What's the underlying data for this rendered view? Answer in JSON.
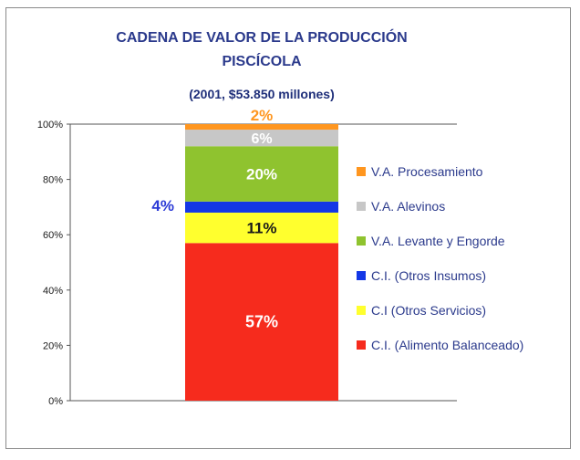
{
  "chart_data": {
    "type": "bar",
    "stacked": true,
    "title": "CADENA DE VALOR DE LA PRODUCCIÓN PISCÍCOLA",
    "title_lines": [
      "CADENA DE VALOR DE LA PRODUCCIÓN",
      "PISCÍCOLA"
    ],
    "subtitle": "(2001, $53.850 millones)",
    "ylim": [
      0,
      100
    ],
    "yticks": [
      "0%",
      "20%",
      "40%",
      "60%",
      "80%",
      "100%"
    ],
    "ytick_values": [
      0,
      20,
      40,
      60,
      80,
      100
    ],
    "grid": false,
    "legend_position": "right",
    "series": [
      {
        "name": "C.I. (Alimento Balanceado)",
        "value": 57,
        "label": "57%",
        "color": "#f62b1d",
        "label_color": "#ffffff"
      },
      {
        "name": "C.I  (Otros Servicios)",
        "value": 11,
        "label": "11%",
        "color": "#ffff2e",
        "label_color": "#1a1a1a"
      },
      {
        "name": "C.I. (Otros Insumos)",
        "value": 4,
        "label": "4%",
        "color": "#1437e6",
        "label_color": "#2b3ad6"
      },
      {
        "name": "V.A. Levante y Engorde",
        "value": 20,
        "label": "20%",
        "color": "#8fc32f",
        "label_color": "#ffffff"
      },
      {
        "name": "V.A. Alevinos",
        "value": 6,
        "label": "6%",
        "color": "#c7c7c7",
        "label_color": "#ffffff"
      },
      {
        "name": "V.A. Procesamiento",
        "value": 2,
        "label": "2%",
        "color": "#ff961f",
        "label_color": "#ff961f"
      }
    ],
    "legend_order": [
      "V.A. Procesamiento",
      "V.A. Alevinos",
      "V.A. Levante y Engorde",
      "C.I. (Otros Insumos)",
      "C.I  (Otros Servicios)",
      "C.I. (Alimento Balanceado)"
    ]
  }
}
